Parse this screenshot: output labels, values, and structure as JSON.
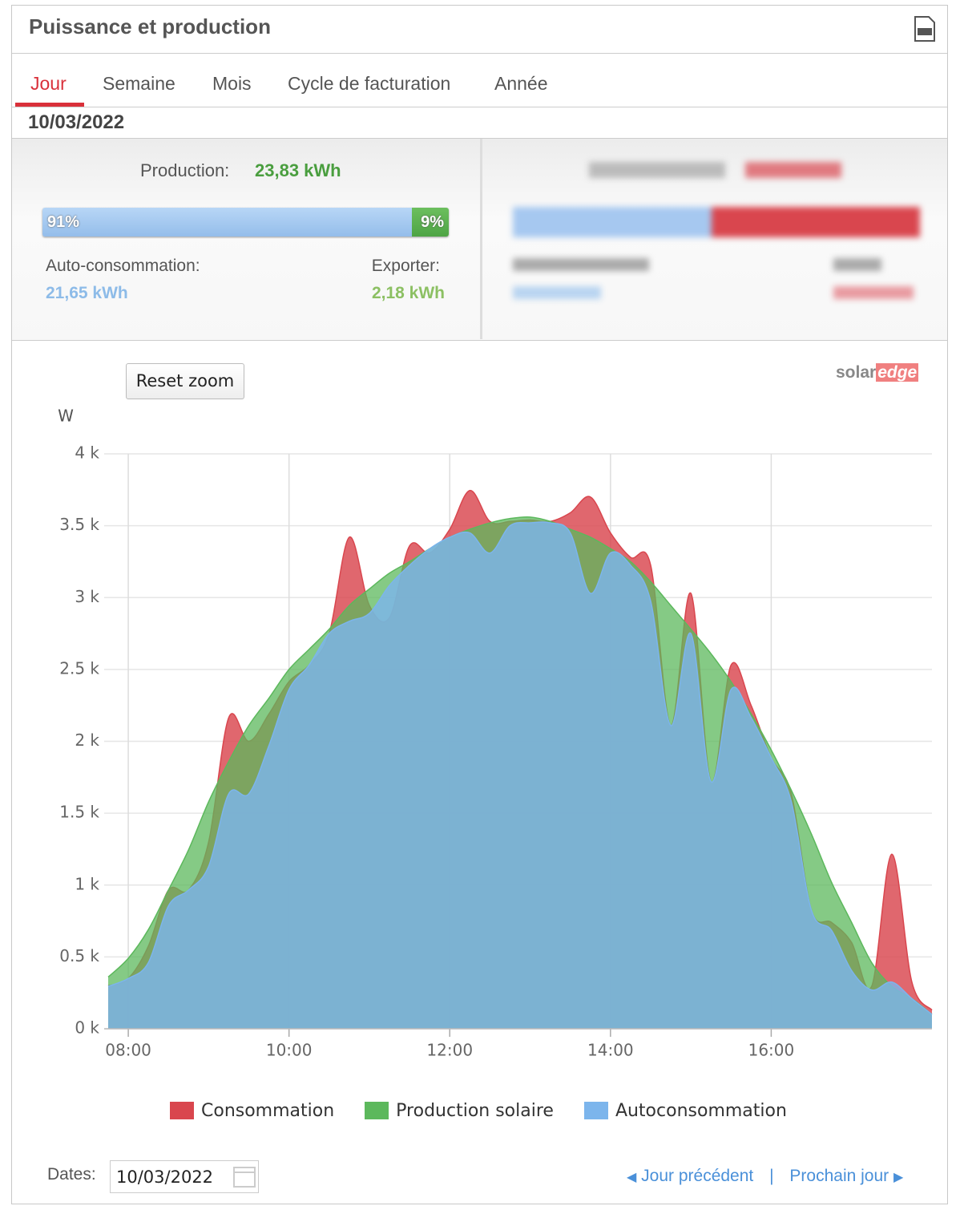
{
  "header": {
    "title": "Puissance et production"
  },
  "tabs": [
    "Jour",
    "Semaine",
    "Mois",
    "Cycle de facturation",
    "Année"
  ],
  "date": "10/03/2022",
  "production": {
    "label": "Production:",
    "value": "23,83 kWh",
    "self_share": {
      "value": 91,
      "label": "91%"
    },
    "export_share": {
      "value": 9,
      "label": "9%"
    },
    "self_label": "Auto-consommation:",
    "self_value": "21,65 kWh",
    "export_label": "Exporter:",
    "export_value": "2,18 kWh"
  },
  "reset_zoom": "Reset zoom",
  "logo": [
    "solar",
    "edge"
  ],
  "chart_data": {
    "type": "area",
    "y_label": "W",
    "x": [
      7.75,
      8,
      8.25,
      8.5,
      8.75,
      9,
      9.25,
      9.5,
      9.75,
      10,
      10.25,
      10.5,
      10.75,
      11,
      11.25,
      11.5,
      11.75,
      12,
      12.25,
      12.5,
      12.75,
      13,
      13.25,
      13.5,
      13.75,
      14,
      14.25,
      14.5,
      14.75,
      15,
      15.25,
      15.5,
      15.75,
      16,
      16.25,
      16.5,
      16.75,
      17,
      17.25,
      17.5,
      17.75,
      18
    ],
    "xlim": [
      7.7,
      18
    ],
    "xticks": [
      {
        "value": 8,
        "label": "08:00"
      },
      {
        "value": 10,
        "label": "10:00"
      },
      {
        "value": 12,
        "label": "12:00"
      },
      {
        "value": 14,
        "label": "14:00"
      },
      {
        "value": 16,
        "label": "16:00"
      }
    ],
    "ylim": [
      0,
      4000
    ],
    "yticks": [
      {
        "value": 0,
        "label": "0 k"
      },
      {
        "value": 500,
        "label": "0.5 k"
      },
      {
        "value": 1000,
        "label": "1 k"
      },
      {
        "value": 1500,
        "label": "1.5 k"
      },
      {
        "value": 2000,
        "label": "2 k"
      },
      {
        "value": 2500,
        "label": "2.5 k"
      },
      {
        "value": 3000,
        "label": "3 k"
      },
      {
        "value": 3500,
        "label": "3.5 k"
      },
      {
        "value": 4000,
        "label": "4 k"
      }
    ],
    "grid": true,
    "series": [
      {
        "name": "Consommation",
        "color": "#d9464e",
        "values": [
          300,
          350,
          575,
          965,
          965,
          1300,
          2165,
          2000,
          2190,
          2415,
          2530,
          2750,
          3420,
          2945,
          2860,
          3360,
          3310,
          3475,
          3745,
          3530,
          3530,
          3540,
          3530,
          3590,
          3700,
          3450,
          3280,
          3225,
          2110,
          3030,
          1720,
          2530,
          2250,
          1885,
          1635,
          825,
          740,
          600,
          295,
          1215,
          325,
          130
        ]
      },
      {
        "name": "Production solaire",
        "color": "#5cb85c",
        "values": [
          360,
          490,
          690,
          965,
          1245,
          1580,
          1860,
          2110,
          2300,
          2500,
          2640,
          2780,
          2945,
          3060,
          3170,
          3250,
          3340,
          3420,
          3475,
          3520,
          3550,
          3560,
          3530,
          3475,
          3420,
          3340,
          3250,
          3110,
          2945,
          2780,
          2610,
          2415,
          2190,
          1940,
          1660,
          1355,
          1020,
          740,
          460,
          295,
          210,
          100
        ]
      },
      {
        "name": "Autoconsommation",
        "color": "#7cb5ec",
        "values": [
          295,
          350,
          460,
          855,
          965,
          1130,
          1635,
          1635,
          1970,
          2360,
          2530,
          2750,
          2835,
          2890,
          3085,
          3225,
          3340,
          3420,
          3450,
          3310,
          3500,
          3520,
          3520,
          3450,
          3030,
          3310,
          3225,
          2975,
          2110,
          2750,
          1720,
          2360,
          2165,
          1885,
          1580,
          825,
          685,
          405,
          270,
          325,
          210,
          100
        ]
      }
    ]
  },
  "footer": {
    "dates_label": "Dates:",
    "date_input": "10/03/2022",
    "prev": "Jour précédent",
    "separator": "|",
    "next": "Prochain jour"
  }
}
